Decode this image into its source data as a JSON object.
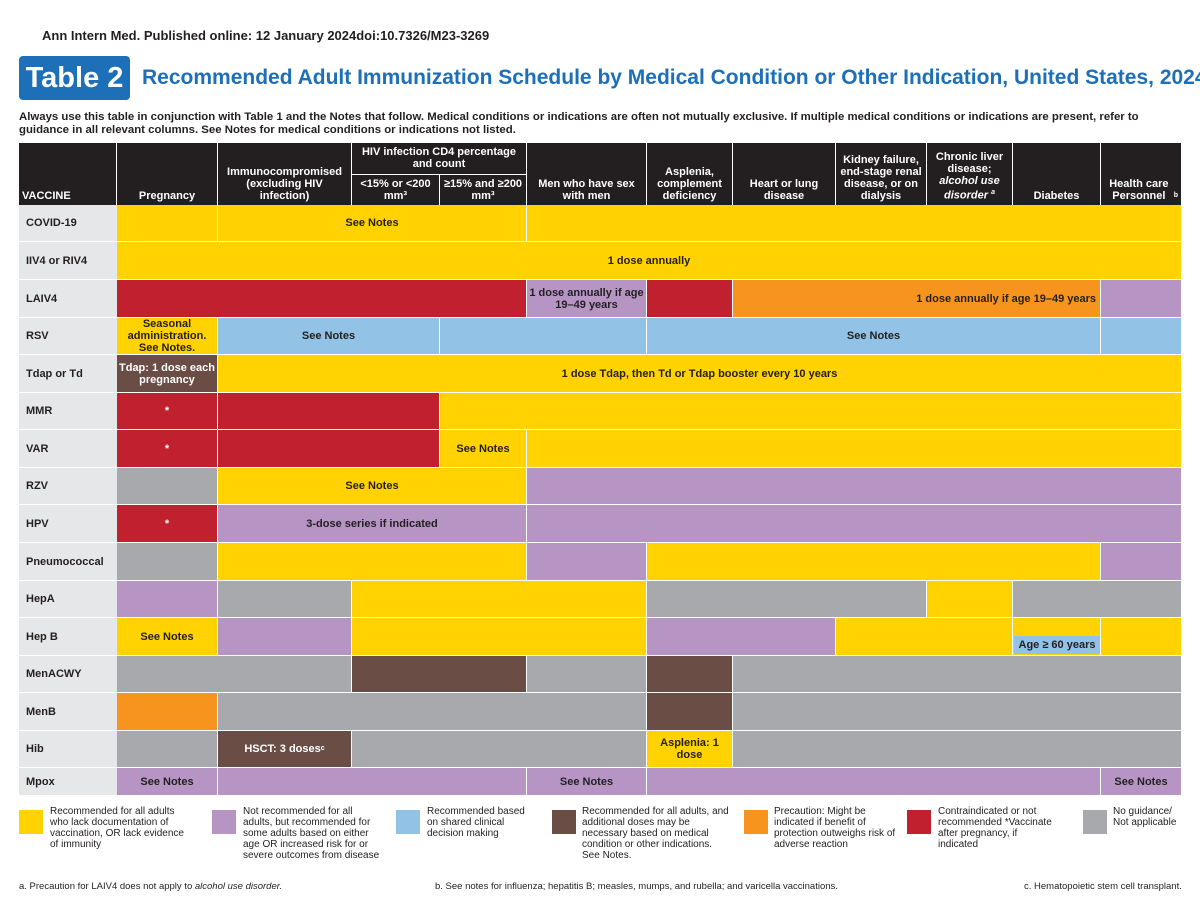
{
  "citation": "Ann Intern Med. Published online: 12 January 2024doi:10.7326/M23-3269",
  "badge": "Table 2",
  "title": "Recommended Adult Immunization Schedule by Medical Condition or Other Indication, United States, 2024",
  "instructions": "Always use this table in conjunction with Table 1 and the Notes that follow. Medical conditions or indications are often not mutually exclusive. If multiple medical conditions or indications are present, refer to guidance in all relevant columns. See Notes for medical conditions or indications not listed.",
  "headers": {
    "vaccine": "VACCINE",
    "pregnancy": "Pregnancy",
    "immuno": "Immunocompromised (excluding HIV infection)",
    "hiv_group": "HIV infection CD4 percentage and count",
    "hiv_low": "<15% or <200 mm³",
    "hiv_high": "≥15% and ≥200 mm³",
    "msm": "Men who have sex with men",
    "asplenia": "Asplenia, complement deficiency",
    "heart": "Heart or lung disease",
    "kidney": "Kidney failure, end-stage renal disease, or on dialysis",
    "liver_a": "Chronic liver disease;",
    "liver_b": "alcohol use disorder",
    "liver_sup": "a",
    "diabetes": "Diabetes",
    "hcp": "Health care Personnel",
    "hcp_sup": "b"
  },
  "rows": [
    "COVID-19",
    "IIV4 or RIV4",
    "LAIV4",
    "RSV",
    "Tdap or Td",
    "MMR",
    "VAR",
    "RZV",
    "HPV",
    "Pneumococcal",
    "HepA",
    "Hep B",
    "MenACWY",
    "MenB",
    "Hib",
    "Mpox"
  ],
  "texts": {
    "see_notes": "See Notes",
    "one_dose_annually": "1 dose annually",
    "laiv_msm": "1 dose annually if age 19–49 years",
    "laiv_rest": "1 dose annually if age 19–49 years",
    "rsv_preg": "Seasonal administration. See Notes.",
    "tdap_preg": "Tdap: 1 dose each pregnancy",
    "tdap_rest": "1 dose Tdap, then Td or Tdap booster every 10 years",
    "star": "*",
    "hpv_series": "3-dose series if indicated",
    "age_60": "Age ≥ 60 years",
    "hsct": "HSCT: 3 doses",
    "hsct_sup": "c",
    "asplenia_dose": "Asplenia: 1 dose"
  },
  "legend": [
    {
      "color": "#ffd200",
      "text": "Recommended for all adults who lack documentation of vaccination, OR lack evidence of immunity"
    },
    {
      "color": "#b695c5",
      "text": "Not recommended for all adults, but recommended for some adults based on either age OR increased risk for or severe outcomes from disease"
    },
    {
      "color": "#92c2e6",
      "text": "Recommended based on shared clinical decision making"
    },
    {
      "color": "#6a4d45",
      "text": "Recommended for all adults, and additional doses may be necessary based on medical condition or other indications. See Notes."
    },
    {
      "color": "#f7941d",
      "text": "Precaution: Might be indicated if benefit of protection outweighs risk of adverse reaction"
    },
    {
      "color": "#c1202e",
      "text": "Contraindicated or not recommended *Vaccinate after pregnancy, if indicated"
    },
    {
      "color": "#a7a9ac",
      "text": "No guidance/ Not applicable"
    }
  ],
  "footnotes": {
    "a_prefix": "a.   Precaution for LAIV4 does not apply to ",
    "a_italic": "alcohol use disorder.",
    "b": "b.   See notes for influenza; hepatitis B; measles, mumps, and rubella; and varicella vaccinations.",
    "c": "c.   Hematopoietic stem cell transplant."
  }
}
